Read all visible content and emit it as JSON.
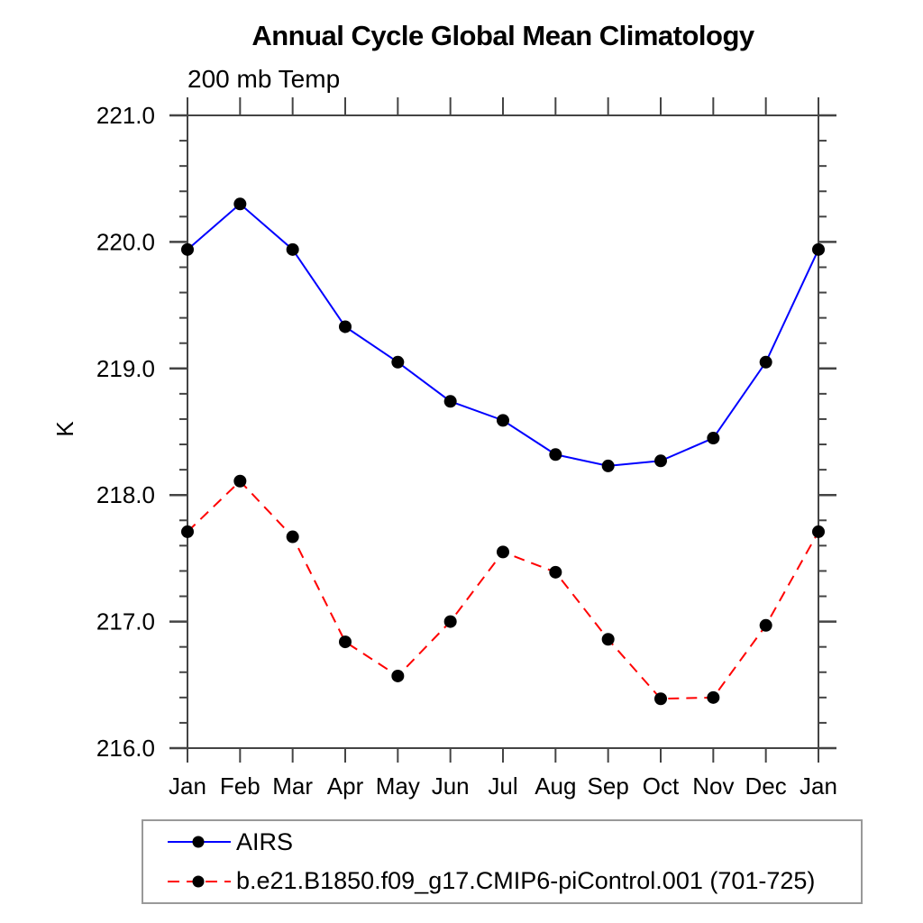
{
  "page": {
    "background": "#ffffff"
  },
  "chart_data": {
    "type": "line",
    "title": "Annual Cycle Global Mean Climatology",
    "subtitle": "200 mb Temp",
    "ylabel": "K",
    "xlabel": "",
    "categories": [
      "Jan",
      "Feb",
      "Mar",
      "Apr",
      "May",
      "Jun",
      "Jul",
      "Aug",
      "Sep",
      "Oct",
      "Nov",
      "Dec",
      "Jan"
    ],
    "ylim": [
      216.0,
      221.0
    ],
    "ytick_labels": [
      "221.0",
      "220.0",
      "219.0",
      "218.0",
      "217.0",
      "216.0"
    ],
    "ytick_minor_step": 0.2,
    "grid": false,
    "legend_position": "bottom-left-box",
    "axis_color": "#444444",
    "legend_border_color": "#999999",
    "marker_color": "#000000",
    "series": [
      {
        "name": "AIRS",
        "color": "#0000ff",
        "line_style": "solid",
        "marker": "filled-circle",
        "values": [
          219.94,
          220.3,
          219.94,
          219.33,
          219.05,
          218.74,
          218.59,
          218.32,
          218.23,
          218.27,
          218.45,
          219.05,
          219.94
        ]
      },
      {
        "name": "b.e21.B1850.f09_g17.CMIP6-piControl.001 (701-725)",
        "color": "#ff0000",
        "line_style": "dashed",
        "marker": "filled-circle",
        "values": [
          217.71,
          218.11,
          217.67,
          216.84,
          216.57,
          217.0,
          217.55,
          217.39,
          216.86,
          216.39,
          216.4,
          216.97,
          217.71
        ]
      }
    ]
  }
}
